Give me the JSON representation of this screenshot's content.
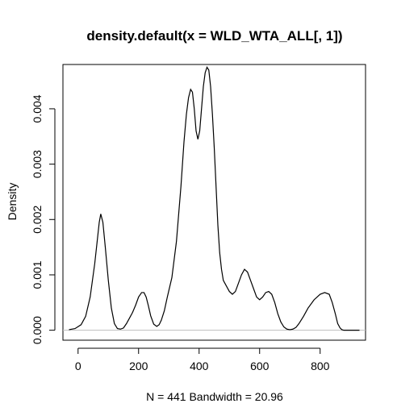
{
  "chart_data": {
    "type": "line",
    "title": "density.default(x = WLD_WTA_ALL[, 1])",
    "xlabel": "N = 441   Bandwidth = 20.96",
    "ylabel": "Density",
    "xlim": [
      -50,
      950
    ],
    "ylim": [
      -0.00018,
      0.0048
    ],
    "xticks": [
      0,
      200,
      400,
      600,
      800
    ],
    "xtick_labels": [
      "0",
      "200",
      "400",
      "600",
      "800"
    ],
    "yticks": [
      0.0,
      0.001,
      0.002,
      0.003,
      0.004
    ],
    "ytick_labels": [
      "0.000",
      "0.001",
      "0.002",
      "0.003",
      "0.004"
    ],
    "grid": false,
    "baseline": 0,
    "colors": {
      "line": "#000000",
      "baseline": "#bebebe",
      "frame": "#000000"
    },
    "series": [
      {
        "x": [
          -30,
          -10,
          10,
          25,
          40,
          55,
          65,
          70,
          75,
          82,
          90,
          100,
          110,
          120,
          130,
          140,
          150,
          160,
          170,
          180,
          190,
          200,
          210,
          218,
          225,
          232,
          240,
          250,
          260,
          268,
          275,
          285,
          295,
          310,
          325,
          340,
          350,
          358,
          365,
          372,
          378,
          384,
          390,
          396,
          402,
          408,
          414,
          420,
          426,
          432,
          438,
          444,
          450,
          456,
          462,
          468,
          474,
          480,
          490,
          500,
          510,
          520,
          530,
          540,
          550,
          560,
          570,
          580,
          590,
          600,
          610,
          620,
          630,
          640,
          650,
          660,
          670,
          680,
          690,
          700,
          710,
          720,
          730,
          745,
          760,
          780,
          800,
          815,
          830,
          840,
          850,
          858,
          866,
          872,
          878,
          885,
          892,
          900,
          910,
          920,
          930
        ],
        "y": [
          1e-05,
          3e-05,
          0.0001,
          0.00025,
          0.0006,
          0.0012,
          0.0017,
          0.00195,
          0.0021,
          0.00195,
          0.0015,
          0.0009,
          0.0004,
          0.00012,
          3e-05,
          2e-05,
          4e-05,
          0.00012,
          0.00022,
          0.00032,
          0.00045,
          0.0006,
          0.00068,
          0.00068,
          0.0006,
          0.00045,
          0.00026,
          0.00011,
          7e-05,
          0.0001,
          0.00018,
          0.00035,
          0.0006,
          0.00095,
          0.0016,
          0.0026,
          0.0034,
          0.0039,
          0.0042,
          0.00435,
          0.0043,
          0.004,
          0.0036,
          0.00345,
          0.0036,
          0.004,
          0.0044,
          0.00465,
          0.00475,
          0.0047,
          0.0044,
          0.0039,
          0.0033,
          0.0026,
          0.0019,
          0.0014,
          0.0011,
          0.0009,
          0.0008,
          0.0007,
          0.00065,
          0.0007,
          0.00085,
          0.001,
          0.0011,
          0.00105,
          0.0009,
          0.00075,
          0.0006,
          0.00055,
          0.0006,
          0.00068,
          0.0007,
          0.00065,
          0.0005,
          0.0003,
          0.00015,
          6e-05,
          2e-05,
          1e-05,
          2e-05,
          5e-05,
          0.00012,
          0.00025,
          0.0004,
          0.00055,
          0.00065,
          0.00068,
          0.00065,
          0.0005,
          0.0003,
          0.00012,
          4e-05,
          1e-05,
          0.0,
          0.0,
          0.0,
          0.0,
          0.0,
          0.0,
          0.0
        ]
      }
    ]
  }
}
